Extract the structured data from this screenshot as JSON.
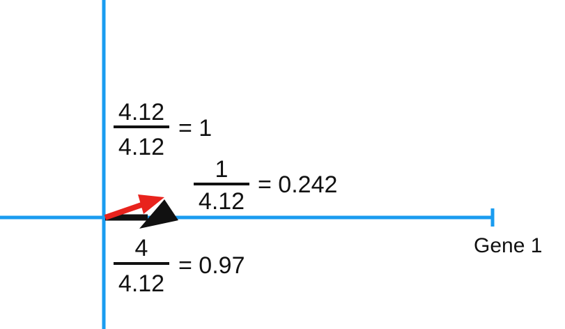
{
  "colors": {
    "axis": "#1a9cf0",
    "arrow_red": "#e8231d",
    "arrow_black": "#111111",
    "text": "#111111"
  },
  "axis": {
    "x_label": "Gene 1"
  },
  "fractions": [
    {
      "numerator": "4.12",
      "denominator": "4.12",
      "result": "= 1"
    },
    {
      "numerator": "1",
      "denominator": "4.12",
      "result": "= 0.242"
    },
    {
      "numerator": "4",
      "denominator": "4.12",
      "result": "= 0.97"
    }
  ]
}
